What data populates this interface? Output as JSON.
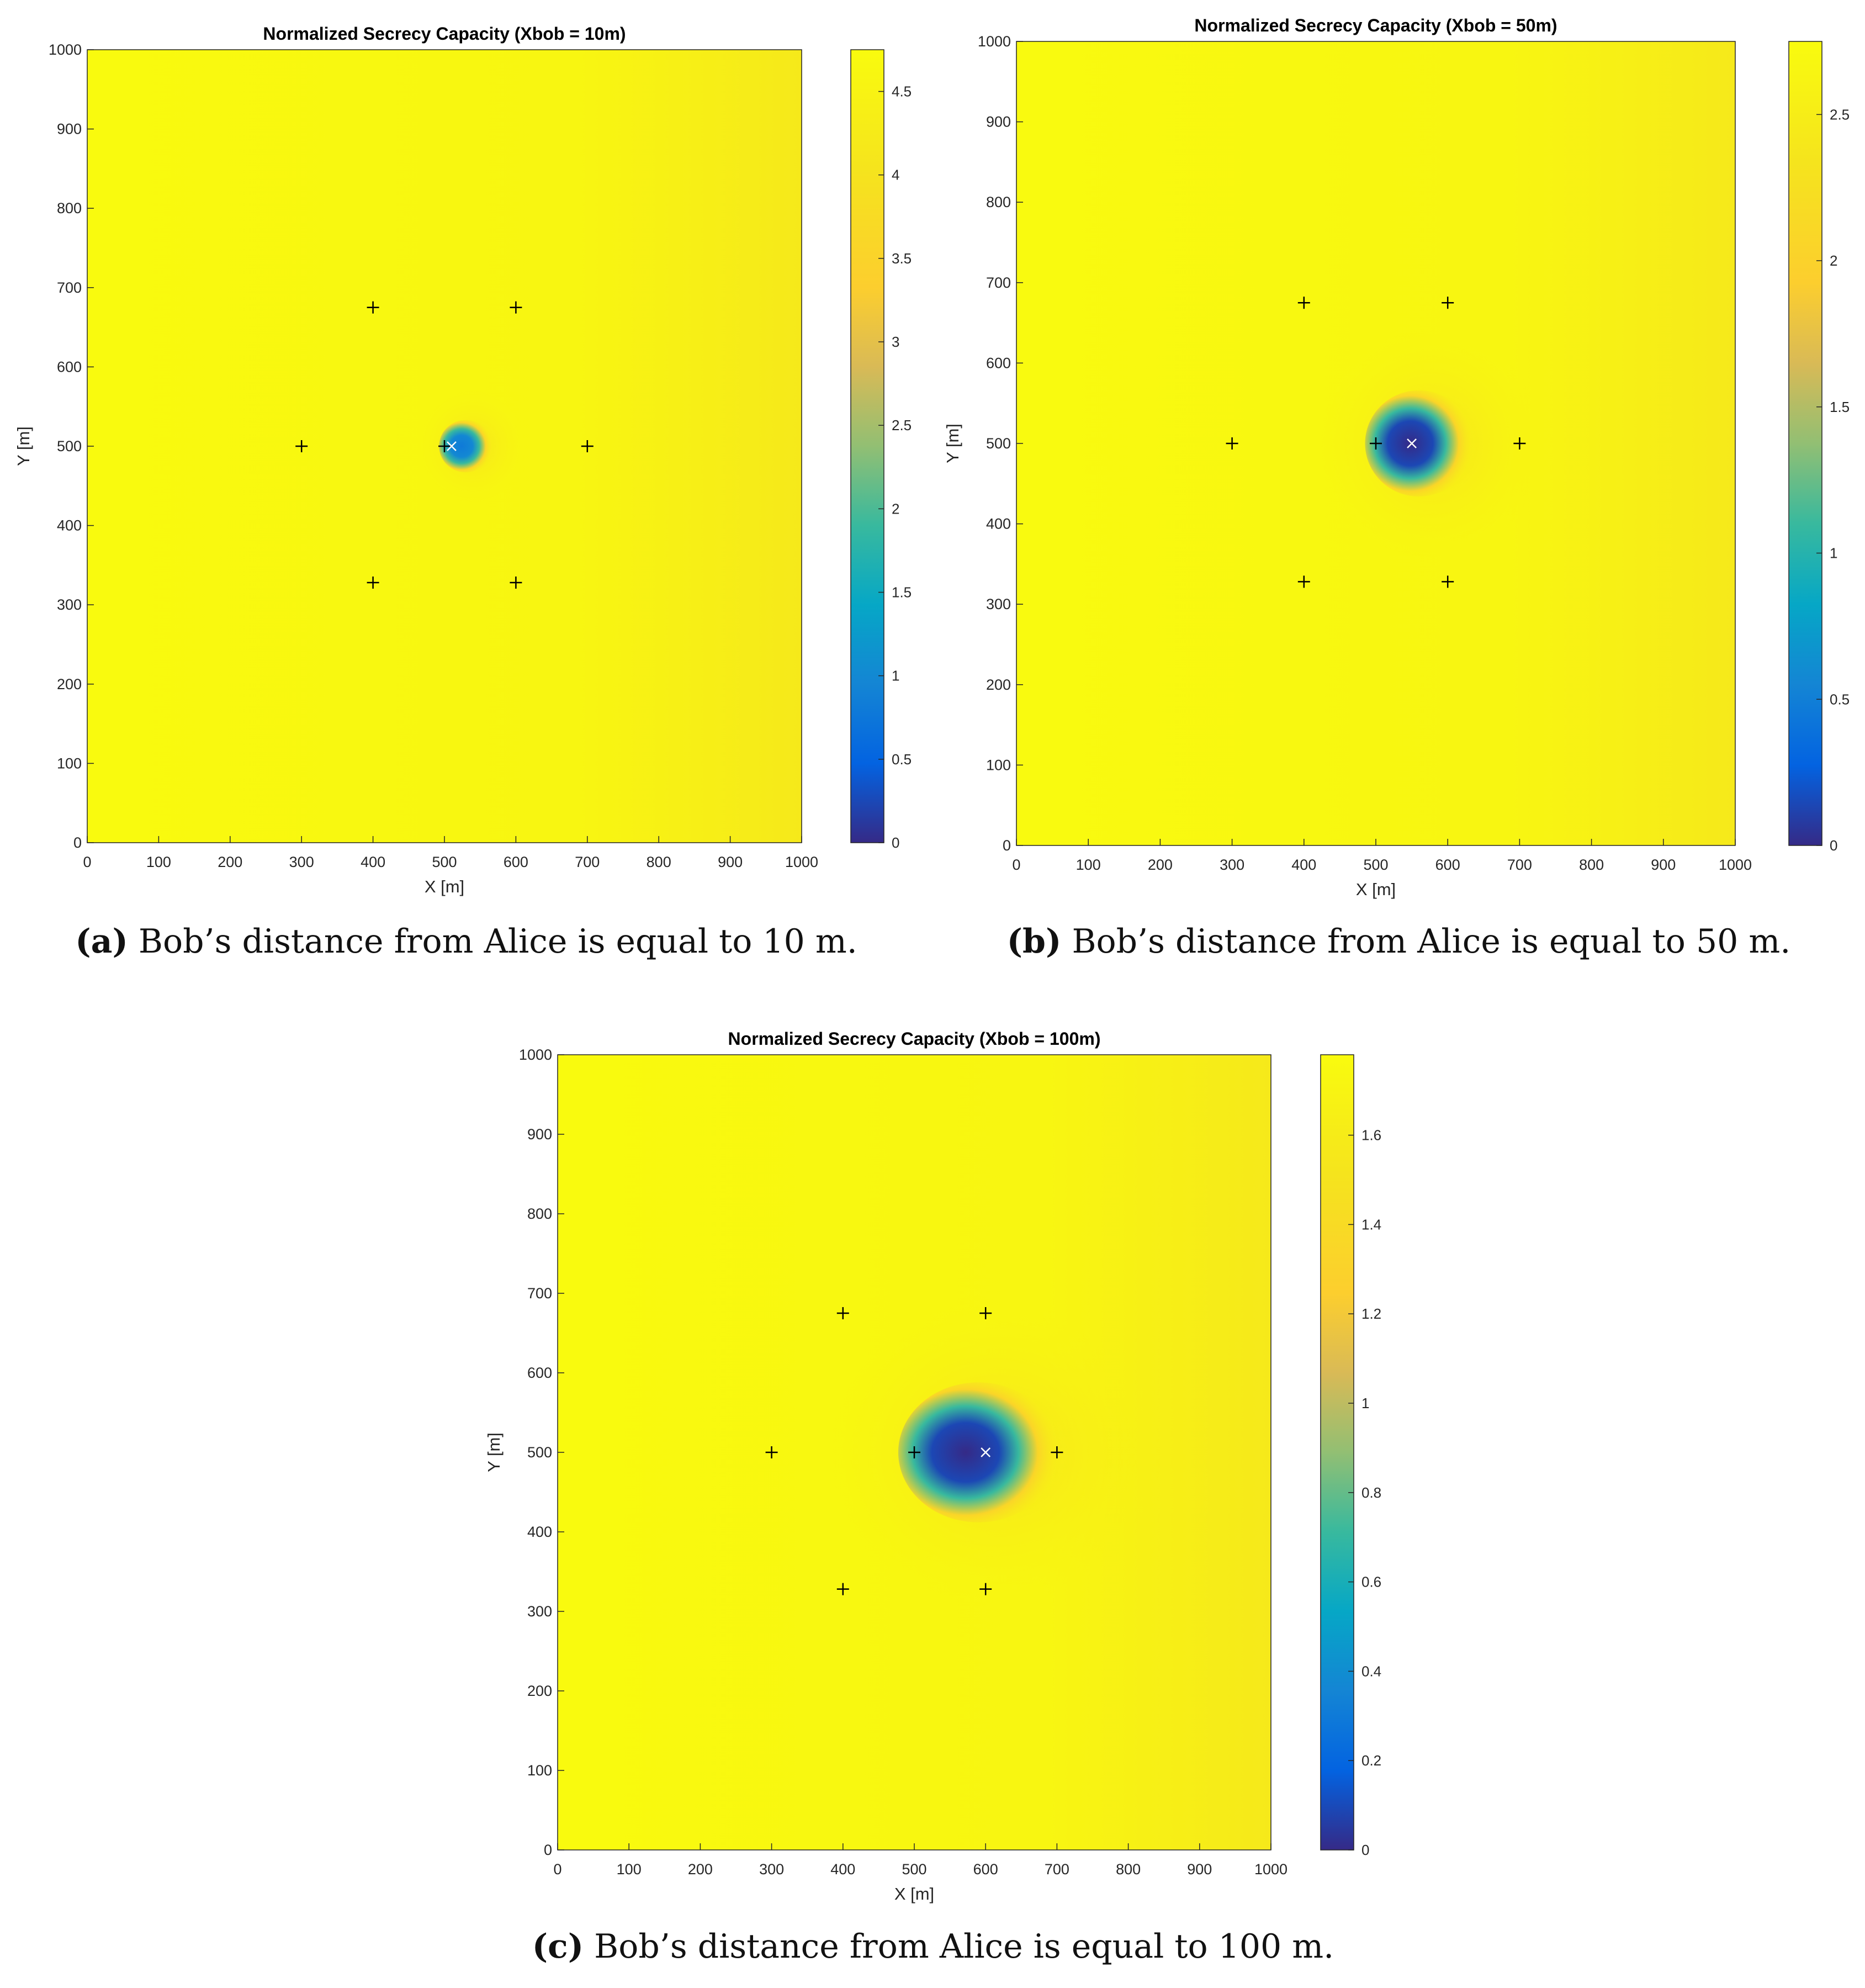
{
  "figure": {
    "captions": [
      {
        "letter": "(a)",
        "text": " Bob’s distance from Alice is equal to 10 m."
      },
      {
        "letter": "(b)",
        "text": " Bob’s distance from Alice is equal to 50 m."
      },
      {
        "letter": "(c)",
        "text": " Bob’s distance from Alice is equal to 100 m."
      }
    ]
  },
  "chart_data": [
    {
      "type": "heatmap",
      "title": "Normalized Secrecy Capacity (Xbob = 10m)",
      "xlabel": "X [m]",
      "ylabel": "Y [m]",
      "xlim": [
        0,
        1000
      ],
      "ylim": [
        0,
        1000
      ],
      "xticks": [
        "0",
        "100",
        "200",
        "300",
        "400",
        "500",
        "600",
        "700",
        "800",
        "900",
        "1000"
      ],
      "yticks": [
        "0",
        "100",
        "200",
        "300",
        "400",
        "500",
        "600",
        "700",
        "800",
        "900",
        "1000"
      ],
      "colorbar": {
        "range": [
          0,
          4.75
        ],
        "ticks": [
          "0",
          "0.5",
          "1",
          "1.5",
          "2",
          "2.5",
          "3",
          "3.5",
          "4",
          "4.5"
        ],
        "colormap": "parula"
      },
      "eavesdroppers": [
        [
          300,
          500
        ],
        [
          400,
          675
        ],
        [
          600,
          675
        ],
        [
          700,
          500
        ],
        [
          600,
          328
        ],
        [
          400,
          328
        ]
      ],
      "alice": [
        500,
        500
      ],
      "bob": [
        510,
        500
      ],
      "low_region": {
        "x": [
          500,
          560
        ],
        "y": [
          470,
          530
        ],
        "min_value": 0.8
      }
    },
    {
      "type": "heatmap",
      "title": "Normalized Secrecy Capacity (Xbob = 50m)",
      "xlabel": "X [m]",
      "ylabel": "Y [m]",
      "xlim": [
        0,
        1000
      ],
      "ylim": [
        0,
        1000
      ],
      "xticks": [
        "0",
        "100",
        "200",
        "300",
        "400",
        "500",
        "600",
        "700",
        "800",
        "900",
        "1000"
      ],
      "yticks": [
        "0",
        "100",
        "200",
        "300",
        "400",
        "500",
        "600",
        "700",
        "800",
        "900",
        "1000"
      ],
      "colorbar": {
        "range": [
          0,
          2.75
        ],
        "ticks": [
          "0",
          "0.5",
          "1",
          "1.5",
          "2",
          "2.5"
        ],
        "colormap": "parula"
      },
      "eavesdroppers": [
        [
          300,
          500
        ],
        [
          400,
          675
        ],
        [
          600,
          675
        ],
        [
          700,
          500
        ],
        [
          600,
          328
        ],
        [
          400,
          328
        ]
      ],
      "alice": [
        500,
        500
      ],
      "bob": [
        550,
        500
      ],
      "low_region": {
        "x": [
          500,
          620
        ],
        "y": [
          440,
          560
        ],
        "min_value": 0
      }
    },
    {
      "type": "heatmap",
      "title": "Normalized Secrecy Capacity (Xbob = 100m)",
      "xlabel": "X [m]",
      "ylabel": "Y [m]",
      "xlim": [
        0,
        1000
      ],
      "ylim": [
        0,
        1000
      ],
      "xticks": [
        "0",
        "100",
        "200",
        "300",
        "400",
        "500",
        "600",
        "700",
        "800",
        "900",
        "1000"
      ],
      "yticks": [
        "0",
        "100",
        "200",
        "300",
        "400",
        "500",
        "600",
        "700",
        "800",
        "900",
        "1000"
      ],
      "colorbar": {
        "range": [
          0,
          1.78
        ],
        "ticks": [
          "0",
          "0.2",
          "0.4",
          "0.6",
          "0.8",
          "1",
          "1.2",
          "1.4",
          "1.6"
        ],
        "colormap": "parula"
      },
      "eavesdroppers": [
        [
          300,
          500
        ],
        [
          400,
          675
        ],
        [
          600,
          675
        ],
        [
          700,
          500
        ],
        [
          600,
          328
        ],
        [
          400,
          328
        ]
      ],
      "alice": [
        500,
        500
      ],
      "bob": [
        600,
        500
      ],
      "low_region": {
        "x": [
          500,
          680
        ],
        "y": [
          420,
          580
        ],
        "min_value": 0
      }
    }
  ]
}
